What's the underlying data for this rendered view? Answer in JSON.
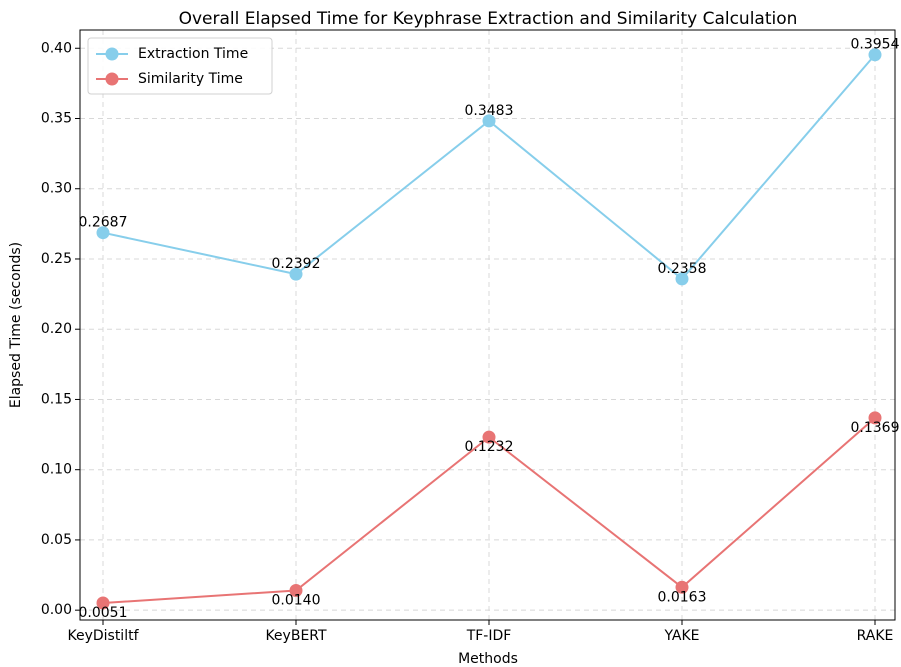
{
  "chart_data": {
    "type": "line",
    "title": "Overall Elapsed Time for Keyphrase Extraction and Similarity Calculation",
    "xlabel": "Methods",
    "ylabel": "Elapsed Time (seconds)",
    "categories": [
      "KeyDistiltf",
      "KeyBERT",
      "TF-IDF",
      "YAKE",
      "RAKE"
    ],
    "series": [
      {
        "name": "Extraction Time",
        "color": "#87ceeb",
        "values": [
          0.2687,
          0.2392,
          0.3483,
          0.2358,
          0.3954
        ],
        "value_labels": [
          "0.2687",
          "0.2392",
          "0.3483",
          "0.2358",
          "0.3954"
        ]
      },
      {
        "name": "Similarity Time",
        "color": "#e87474",
        "values": [
          0.0051,
          0.014,
          0.1232,
          0.0163,
          0.1369
        ],
        "value_labels": [
          "0.0051",
          "0.0140",
          "0.1232",
          "0.0163",
          "0.1369"
        ]
      }
    ],
    "ylim": [
      -0.007,
      0.413
    ],
    "yticks": [
      {
        "value": 0,
        "label": "0.00"
      },
      0.05,
      {
        "value": 0.1,
        "label": "0.10"
      },
      0.15,
      {
        "value": 0.2,
        "label": "0.20"
      },
      0.25,
      {
        "value": 0.3,
        "label": "0.30"
      },
      0.35,
      {
        "value": 0.4,
        "label": "0.40"
      }
    ],
    "grid": true,
    "legend": "upper left"
  }
}
